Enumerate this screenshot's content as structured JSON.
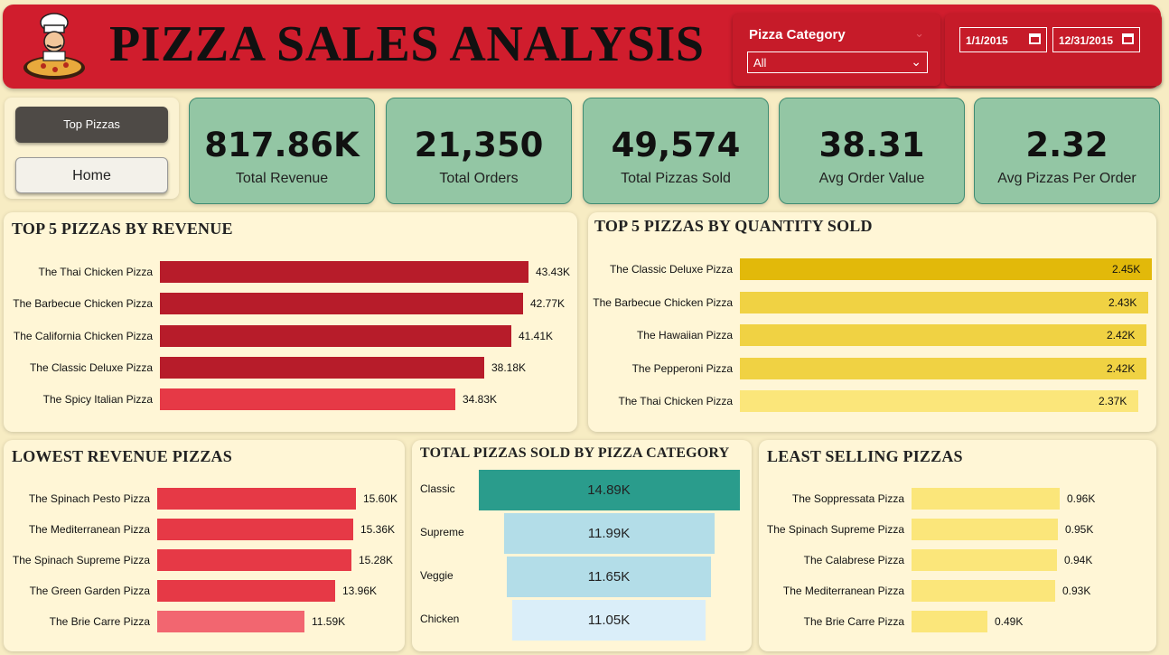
{
  "header": {
    "title": "PIZZA SALES ANALYSIS",
    "slicer_label": "Pizza Category",
    "slicer_value": "All",
    "date_start": "1/1/2015",
    "date_end": "12/31/2015"
  },
  "nav": {
    "top_pizzas": "Top Pizzas",
    "home": "Home"
  },
  "kpis": [
    {
      "value": "817.86K",
      "label": "Total Revenue"
    },
    {
      "value": "21,350",
      "label": "Total Orders"
    },
    {
      "value": "49,574",
      "label": "Total Pizzas Sold"
    },
    {
      "value": "38.31",
      "label": "Avg Order Value"
    },
    {
      "value": "2.32",
      "label": "Avg Pizzas Per Order"
    }
  ],
  "colors": {
    "header_red": "#d01d2d",
    "kpi_green": "#93c6a4",
    "revenue_dark": "#b71c2a",
    "revenue_light": "#e63946",
    "lowest_light": "#f26670",
    "gold_dark": "#e2b90a",
    "gold_mid": "#f0d243",
    "gold_light": "#fbe67a",
    "teal": "#2a9c8c",
    "light_blue": "#b3dde8",
    "pale_blue": "#daeef9"
  },
  "top_revenue": {
    "title": "TOP 5 PIZZAS BY REVENUE",
    "rows": [
      {
        "label": "The Thai Chicken Pizza",
        "value": 43.43,
        "text": "43.43K"
      },
      {
        "label": "The Barbecue Chicken Pizza",
        "value": 42.77,
        "text": "42.77K"
      },
      {
        "label": "The California Chicken Pizza",
        "value": 41.41,
        "text": "41.41K"
      },
      {
        "label": "The Classic Deluxe Pizza",
        "value": 38.18,
        "text": "38.18K"
      },
      {
        "label": "The Spicy Italian Pizza",
        "value": 34.83,
        "text": "34.83K"
      }
    ]
  },
  "top_quantity": {
    "title": "TOP 5 PIZZAS BY QUANTITY SOLD",
    "rows": [
      {
        "label": "The Classic Deluxe Pizza",
        "value": 2.45,
        "text": "2.45K"
      },
      {
        "label": "The Barbecue Chicken Pizza",
        "value": 2.43,
        "text": "2.43K"
      },
      {
        "label": "The Hawaiian Pizza",
        "value": 2.42,
        "text": "2.42K"
      },
      {
        "label": "The Pepperoni Pizza",
        "value": 2.42,
        "text": "2.42K"
      },
      {
        "label": "The Thai Chicken Pizza",
        "value": 2.37,
        "text": "2.37K"
      }
    ]
  },
  "lowest_revenue": {
    "title": "LOWEST REVENUE PIZZAS",
    "rows": [
      {
        "label": "The Spinach Pesto Pizza",
        "value": 15.6,
        "text": "15.60K"
      },
      {
        "label": "The Mediterranean Pizza",
        "value": 15.36,
        "text": "15.36K"
      },
      {
        "label": "The Spinach Supreme Pizza",
        "value": 15.28,
        "text": "15.28K"
      },
      {
        "label": "The Green Garden Pizza",
        "value": 13.96,
        "text": "13.96K"
      },
      {
        "label": "The Brie Carre Pizza",
        "value": 11.59,
        "text": "11.59K"
      }
    ]
  },
  "by_category": {
    "title": "TOTAL PIZZAS SOLD BY PIZZA CATEGORY",
    "rows": [
      {
        "label": "Classic",
        "value": 14.89,
        "text": "14.89K"
      },
      {
        "label": "Supreme",
        "value": 11.99,
        "text": "11.99K"
      },
      {
        "label": "Veggie",
        "value": 11.65,
        "text": "11.65K"
      },
      {
        "label": "Chicken",
        "value": 11.05,
        "text": "11.05K"
      }
    ]
  },
  "least_selling": {
    "title": "LEAST SELLING PIZZAS",
    "rows": [
      {
        "label": "The Soppressata Pizza",
        "value": 0.96,
        "text": "0.96K"
      },
      {
        "label": "The Spinach Supreme Pizza",
        "value": 0.95,
        "text": "0.95K"
      },
      {
        "label": "The Calabrese Pizza",
        "value": 0.94,
        "text": "0.94K"
      },
      {
        "label": "The Mediterranean Pizza",
        "value": 0.93,
        "text": "0.93K"
      },
      {
        "label": "The Brie Carre Pizza",
        "value": 0.49,
        "text": "0.49K"
      }
    ]
  },
  "chart_data": [
    {
      "type": "bar",
      "title": "TOP 5 PIZZAS BY REVENUE",
      "categories": [
        "The Thai Chicken Pizza",
        "The Barbecue Chicken Pizza",
        "The California Chicken Pizza",
        "The Classic Deluxe Pizza",
        "The Spicy Italian Pizza"
      ],
      "values": [
        43.43,
        42.77,
        41.41,
        38.18,
        34.83
      ]
    },
    {
      "type": "bar",
      "title": "TOP 5 PIZZAS BY QUANTITY SOLD",
      "categories": [
        "The Classic Deluxe Pizza",
        "The Barbecue Chicken Pizza",
        "The Hawaiian Pizza",
        "The Pepperoni Pizza",
        "The Thai Chicken Pizza"
      ],
      "values": [
        2.45,
        2.43,
        2.42,
        2.42,
        2.37
      ]
    },
    {
      "type": "bar",
      "title": "LOWEST REVENUE PIZZAS",
      "categories": [
        "The Spinach Pesto Pizza",
        "The Mediterranean Pizza",
        "The Spinach Supreme Pizza",
        "The Green Garden Pizza",
        "The Brie Carre Pizza"
      ],
      "values": [
        15.6,
        15.36,
        15.28,
        13.96,
        11.59
      ]
    },
    {
      "type": "bar",
      "title": "TOTAL PIZZAS SOLD BY PIZZA CATEGORY",
      "categories": [
        "Classic",
        "Supreme",
        "Veggie",
        "Chicken"
      ],
      "values": [
        14.89,
        11.99,
        11.65,
        11.05
      ]
    },
    {
      "type": "bar",
      "title": "LEAST SELLING PIZZAS",
      "categories": [
        "The Soppressata Pizza",
        "The Spinach Supreme Pizza",
        "The Calabrese Pizza",
        "The Mediterranean Pizza",
        "The Brie Carre Pizza"
      ],
      "values": [
        0.96,
        0.95,
        0.94,
        0.93,
        0.49
      ]
    }
  ]
}
